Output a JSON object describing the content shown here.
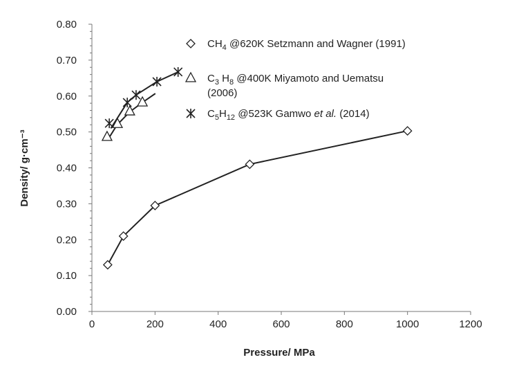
{
  "chart_data": {
    "type": "scatter",
    "xlabel": "Pressure/ MPa",
    "ylabel": "Density/ g·cm⁻³",
    "xlim": [
      0,
      1200
    ],
    "ylim": [
      0,
      0.8
    ],
    "xticks": [
      "0",
      "200",
      "400",
      "600",
      "800",
      "1000",
      "1200"
    ],
    "yticks": [
      "0.00",
      "0.10",
      "0.20",
      "0.30",
      "0.40",
      "0.50",
      "0.60",
      "0.70",
      "0.80"
    ],
    "legend_placement": "top-right",
    "series": [
      {
        "name": "CH4 @620K  Setzmann and Wagner (1991)",
        "marker": "diamond",
        "x": [
          50,
          100,
          200,
          500,
          1000
        ],
        "y": [
          0.13,
          0.21,
          0.295,
          0.41,
          0.503
        ],
        "fit_x": [
          50,
          100,
          200,
          500,
          1000
        ],
        "fit_y": [
          0.13,
          0.21,
          0.295,
          0.41,
          0.503
        ]
      },
      {
        "name": "C3H8 @400K Miyamoto and Uematsu (2006)",
        "marker": "triangle",
        "x": [
          48,
          81,
          120,
          160
        ],
        "y": [
          0.486,
          0.522,
          0.557,
          0.582
        ],
        "fit_x": [
          50,
          80,
          120,
          160,
          201
        ],
        "fit_y": [
          0.478,
          0.52,
          0.556,
          0.582,
          0.607
        ]
      },
      {
        "name": "C5H12 @523K Gamwo et al. (2014)",
        "marker": "asterisk",
        "x": [
          55,
          112,
          140,
          206,
          273
        ],
        "y": [
          0.524,
          0.582,
          0.603,
          0.64,
          0.667
        ],
        "fit_x": [
          60,
          112,
          140,
          206,
          273
        ],
        "fit_y": [
          0.51,
          0.582,
          0.603,
          0.64,
          0.667
        ]
      }
    ],
    "legend": [
      {
        "main": "CH",
        "sub": "4",
        "rest": " @620K  Setzmann and Wagner (1991)"
      },
      {
        "main": "C",
        "sub": "3",
        "main2": " H",
        "sub2": "8",
        "rest": " @400K Miyamoto and Uematsu",
        "line2": "(2006)"
      },
      {
        "main": "C",
        "sub": "5",
        "main2": "H",
        "sub2": "12",
        "rest": " @523K Gamwo ",
        "ital": "et al.",
        "rest2": " (2014)"
      }
    ]
  }
}
